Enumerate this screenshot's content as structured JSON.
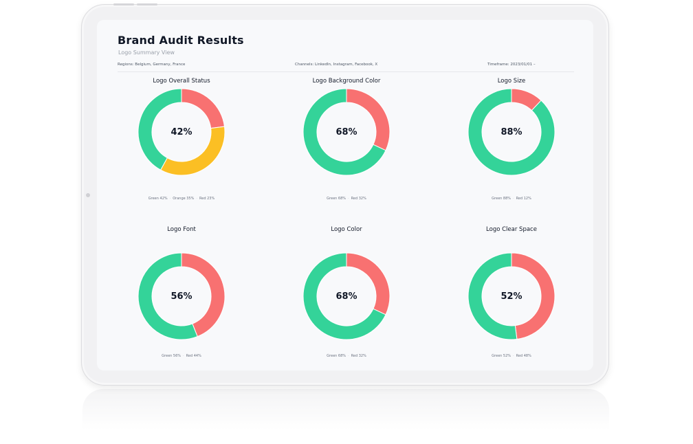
{
  "colors": {
    "green": "#34d399",
    "orange": "#fbbf24",
    "red": "#f87171"
  },
  "header": {
    "title": "Brand Audit Results",
    "subtitle": "Logo Summary View"
  },
  "filters": {
    "regions": "Regions: Belgium, Germany, France",
    "channels": "Channels: LinkedIn, Instagram, Facebook, X",
    "timeframe": "Timeframe: 2023/01/01 –"
  },
  "panels": [
    {
      "title": "Logo Overall Status",
      "center_label": "42%",
      "legend": [
        "Green 42%",
        "Orange 35%",
        "Red 23%"
      ],
      "segments": [
        {
          "name": "Red",
          "value": 23,
          "color": "#f87171"
        },
        {
          "name": "Orange",
          "value": 35,
          "color": "#fbbf24"
        },
        {
          "name": "Green",
          "value": 42,
          "color": "#34d399"
        }
      ]
    },
    {
      "title": "Logo Background Color",
      "center_label": "68%",
      "legend": [
        "Green 68%",
        "Red 32%"
      ],
      "segments": [
        {
          "name": "Red",
          "value": 32,
          "color": "#f87171"
        },
        {
          "name": "Green",
          "value": 68,
          "color": "#34d399"
        }
      ]
    },
    {
      "title": "Logo Size",
      "center_label": "88%",
      "legend": [
        "Green 88%",
        "Red 12%"
      ],
      "segments": [
        {
          "name": "Red",
          "value": 12,
          "color": "#f87171"
        },
        {
          "name": "Green",
          "value": 88,
          "color": "#34d399"
        }
      ]
    },
    {
      "title": "Logo Font",
      "center_label": "56%",
      "legend": [
        "Green 56%",
        "Red 44%"
      ],
      "segments": [
        {
          "name": "Red",
          "value": 44,
          "color": "#f87171"
        },
        {
          "name": "Green",
          "value": 56,
          "color": "#34d399"
        }
      ]
    },
    {
      "title": "Logo Color",
      "center_label": "68%",
      "legend": [
        "Green 68%",
        "Red 32%"
      ],
      "segments": [
        {
          "name": "Red",
          "value": 32,
          "color": "#f87171"
        },
        {
          "name": "Green",
          "value": 68,
          "color": "#34d399"
        }
      ]
    },
    {
      "title": "Logo Clear Space",
      "center_label": "52%",
      "legend": [
        "Green 52%",
        "Red 48%"
      ],
      "segments": [
        {
          "name": "Red",
          "value": 48,
          "color": "#f87171"
        },
        {
          "name": "Green",
          "value": 52,
          "color": "#34d399"
        }
      ]
    }
  ]
}
